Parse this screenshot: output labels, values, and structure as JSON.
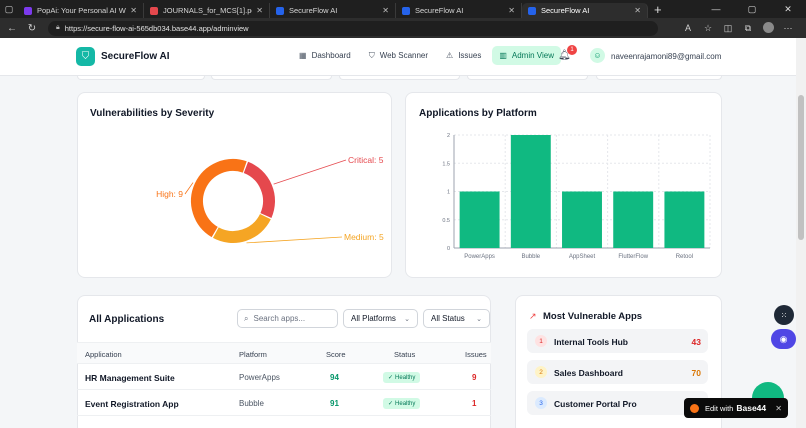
{
  "browser": {
    "tabs": [
      {
        "label": "PopAi: Your Personal AI Workspace",
        "color": "#7c3aed"
      },
      {
        "label": "JOURNALS_for_MCS[1].pdf",
        "color": "#e5484d"
      },
      {
        "label": "SecureFlow AI",
        "color": "#2563eb"
      },
      {
        "label": "SecureFlow AI",
        "color": "#2563eb"
      },
      {
        "label": "SecureFlow AI",
        "color": "#2563eb"
      }
    ],
    "url": "https://secure-flow-ai-565db034.base44.app/adminview"
  },
  "header": {
    "brand": "SecureFlow AI",
    "nav": [
      {
        "label": "Dashboard",
        "icon": "grid-icon"
      },
      {
        "label": "Web Scanner",
        "icon": "shield-icon"
      },
      {
        "label": "Issues",
        "icon": "warning-icon"
      },
      {
        "label": "Admin View",
        "icon": "bar-chart-icon"
      }
    ],
    "notification_count": "1",
    "user_email": "naveenrajamoni89@gmail.com"
  },
  "severity_card": {
    "title": "Vulnerabilities by Severity"
  },
  "platform_card": {
    "title": "Applications by Platform"
  },
  "chart_data": [
    {
      "type": "pie",
      "labels": [
        "Critical",
        "Medium",
        "High"
      ],
      "values": [
        5,
        5,
        9
      ],
      "colors": [
        "#e5484d",
        "#f5a524",
        "#f97316"
      ],
      "data_labels": [
        "Critical: 5",
        "Medium: 5",
        "High: 9"
      ]
    },
    {
      "type": "bar",
      "categories": [
        "PowerApps",
        "Bubble",
        "AppSheet",
        "FlutterFlow",
        "Retool"
      ],
      "values": [
        1,
        2,
        1,
        1,
        1
      ],
      "ylim": [
        0,
        2
      ],
      "yticks": [
        "0",
        "0.5",
        "1",
        "1.5",
        "2"
      ],
      "grid": true,
      "color": "#10b981"
    }
  ],
  "applications": {
    "title": "All Applications",
    "search_placeholder": "Search apps...",
    "platform_filter": "All Platforms",
    "status_filter": "All Status",
    "columns": [
      "Application",
      "Platform",
      "Score",
      "Status",
      "Issues"
    ],
    "rows": [
      {
        "name": "HR Management Suite",
        "platform": "PowerApps",
        "score": "94",
        "status": "Healthy",
        "issues": "9"
      },
      {
        "name": "Event Registration App",
        "platform": "Bubble",
        "score": "91",
        "status": "Healthy",
        "issues": "1"
      }
    ]
  },
  "vulnerable": {
    "title": "Most Vulnerable Apps",
    "items": [
      {
        "rank": "1",
        "name": "Internal Tools Hub",
        "value": "43",
        "color": "#dc2626",
        "badge_bg": "#fee2e2"
      },
      {
        "rank": "2",
        "name": "Sales Dashboard",
        "value": "70",
        "color": "#d97706",
        "badge_bg": "#fef3c7"
      },
      {
        "rank": "3",
        "name": "Customer Portal Pro",
        "value": "",
        "color": "#2563eb",
        "badge_bg": "#dbeafe"
      }
    ]
  },
  "base44": {
    "edit_label": "Edit with",
    "brand": "Base44"
  }
}
